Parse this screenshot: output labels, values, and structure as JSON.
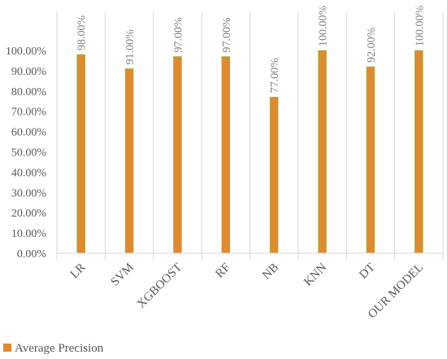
{
  "chart_data": {
    "type": "bar",
    "categories": [
      "LR",
      "SVM",
      "XGBOOST",
      "RF",
      "NB",
      "KNN",
      "DT",
      "OUR MODEL"
    ],
    "series": [
      {
        "name": "Average Precision",
        "values": [
          98.0,
          91.0,
          97.0,
          97.0,
          77.0,
          100.0,
          92.0,
          100.0
        ],
        "color": "#e08a2e"
      }
    ],
    "data_labels": [
      "98.00%",
      "91.00%",
      "97.00%",
      "97.00%",
      "77.00%",
      "100.00%",
      "92.00%",
      "100.00%"
    ],
    "y_ticks": [
      0,
      10,
      20,
      30,
      40,
      50,
      60,
      70,
      80,
      90,
      100
    ],
    "y_tick_labels": [
      "0.00%",
      "10.00%",
      "20.00%",
      "30.00%",
      "40.00%",
      "50.00%",
      "60.00%",
      "70.00%",
      "80.00%",
      "90.00%",
      "100.00%"
    ],
    "ylim": [
      0,
      100
    ],
    "title": "",
    "xlabel": "",
    "ylabel": "",
    "grid": false,
    "legend_position": "bottom-left",
    "colors": {
      "bar": "#e08a2e",
      "bar_edge": "#8cbf4a",
      "separator": "#d9d9d9",
      "axis": "#d9d9d9"
    }
  }
}
